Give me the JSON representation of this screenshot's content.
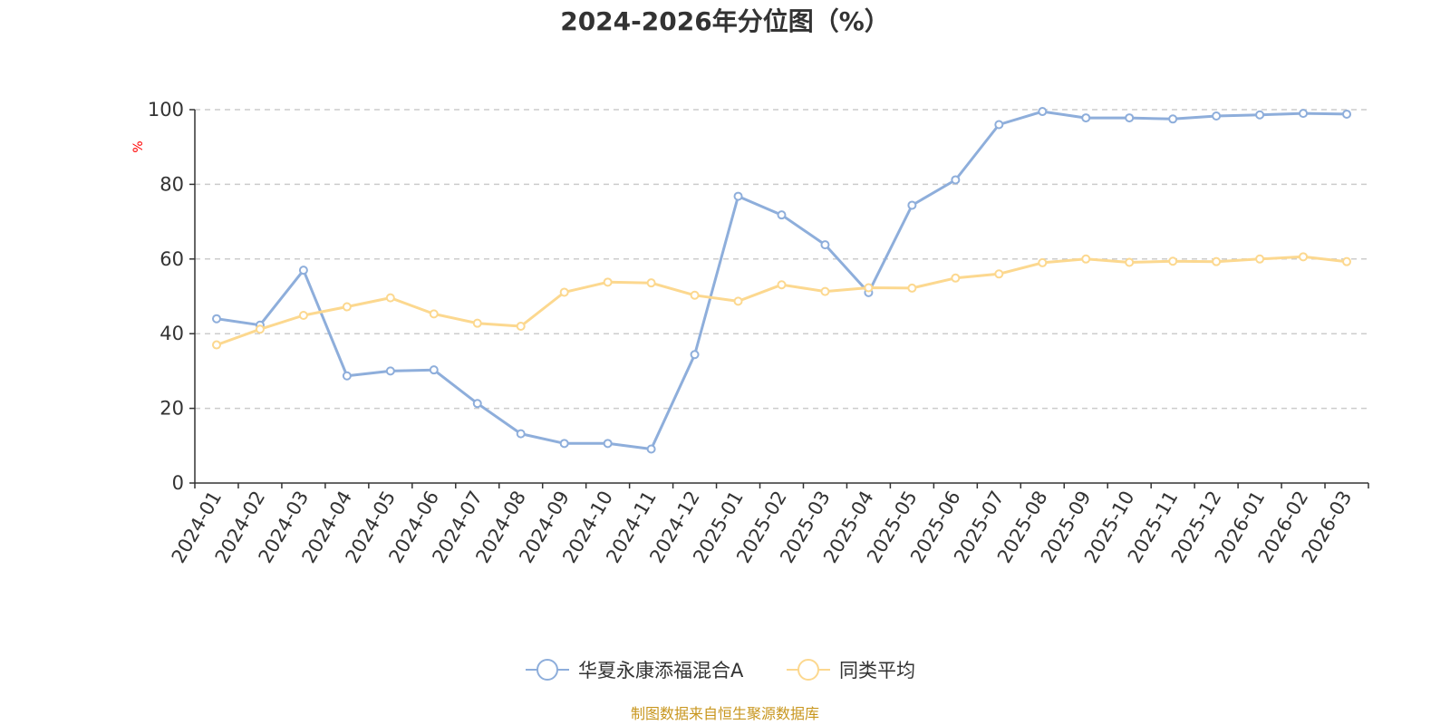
{
  "chart_data": {
    "type": "line",
    "title": "2024-2026年分位图（%）",
    "ylabel": "%",
    "xlabel": "",
    "ylim": [
      0,
      100
    ],
    "yticks": [
      0,
      20,
      40,
      60,
      80,
      100
    ],
    "grid": true,
    "legend_position": "bottom-center",
    "categories": [
      "2024-01",
      "2024-02",
      "2024-03",
      "2024-04",
      "2024-05",
      "2024-06",
      "2024-07",
      "2024-08",
      "2024-09",
      "2024-10",
      "2024-11",
      "2024-12",
      "2025-01",
      "2025-02",
      "2025-03",
      "2025-04",
      "2025-05",
      "2025-06",
      "2025-07",
      "2025-08",
      "2025-09",
      "2025-10",
      "2025-11",
      "2025-12",
      "2026-01",
      "2026-02",
      "2026-03"
    ],
    "series": [
      {
        "name": "华夏永康添福混合A",
        "color": "#8eaedb",
        "values": [
          44,
          42.3,
          57,
          28.7,
          30,
          30.3,
          21.3,
          13.2,
          10.6,
          10.6,
          9.1,
          34.4,
          76.8,
          71.8,
          63.8,
          51,
          74.4,
          81.2,
          96,
          99.5,
          97.8,
          97.8,
          97.5,
          98.3,
          98.6,
          99,
          98.8
        ]
      },
      {
        "name": "同类平均",
        "color": "#fcd88f",
        "values": [
          37,
          41.2,
          44.9,
          47.2,
          49.6,
          45.3,
          42.8,
          42,
          51.1,
          53.8,
          53.6,
          50.3,
          48.7,
          53.1,
          51.3,
          52.3,
          52.2,
          54.9,
          56,
          59,
          60,
          59.1,
          59.4,
          59.3,
          60,
          60.6,
          59.3
        ]
      }
    ]
  },
  "source_note": "制图数据来自恒生聚源数据库"
}
